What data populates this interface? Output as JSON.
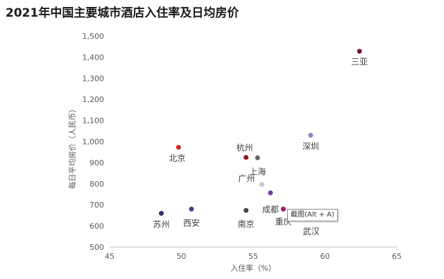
{
  "chart_data": {
    "type": "scatter",
    "title": "2021年中国主要城市酒店入住率及日均房价",
    "xlabel": "入住率（%）",
    "ylabel": "每日平均房价（人民币）",
    "xlim": [
      45,
      65
    ],
    "ylim": [
      500,
      1500
    ],
    "xticks": [
      45,
      50,
      55,
      60,
      65
    ],
    "yticks": [
      500,
      600,
      700,
      800,
      900,
      1000,
      1100,
      1200,
      1300,
      1400,
      1500
    ],
    "ytick_labels": [
      "500",
      "600",
      "700",
      "800",
      "900",
      "1,000",
      "1,100",
      "1,200",
      "1,300",
      "1,400",
      "1,500"
    ],
    "grid": false,
    "points": [
      {
        "label": "三亚",
        "x": 62.4,
        "y": 1428,
        "color": "#7b1430"
      },
      {
        "label": "深圳",
        "x": 59.0,
        "y": 1030,
        "color": "#8e86c4"
      },
      {
        "label": "北京",
        "x": 49.8,
        "y": 973,
        "color": "#d12a2a"
      },
      {
        "label": "杭州",
        "x": 54.5,
        "y": 925,
        "color": "#8b1a1a"
      },
      {
        "label": "上海",
        "x": 55.3,
        "y": 923,
        "color": "#666666"
      },
      {
        "label": "广州",
        "x": 55.6,
        "y": 797,
        "color": "#c8c8c8"
      },
      {
        "label": "成都",
        "x": 56.2,
        "y": 757,
        "color": "#6b3f9a"
      },
      {
        "label": "武汉",
        "x": 57.1,
        "y": 680,
        "color": "#a61e6e"
      },
      {
        "label": "重庆",
        "x": 57.1,
        "y": 680,
        "color": "#a61e6e"
      },
      {
        "label": "南京",
        "x": 54.5,
        "y": 674,
        "color": "#444444"
      },
      {
        "label": "西安",
        "x": 50.7,
        "y": 680,
        "color": "#4b3d8f"
      },
      {
        "label": "苏州",
        "x": 48.6,
        "y": 660,
        "color": "#3b2a6b"
      }
    ]
  },
  "tooltip": {
    "text": "截图(Alt + A)"
  }
}
